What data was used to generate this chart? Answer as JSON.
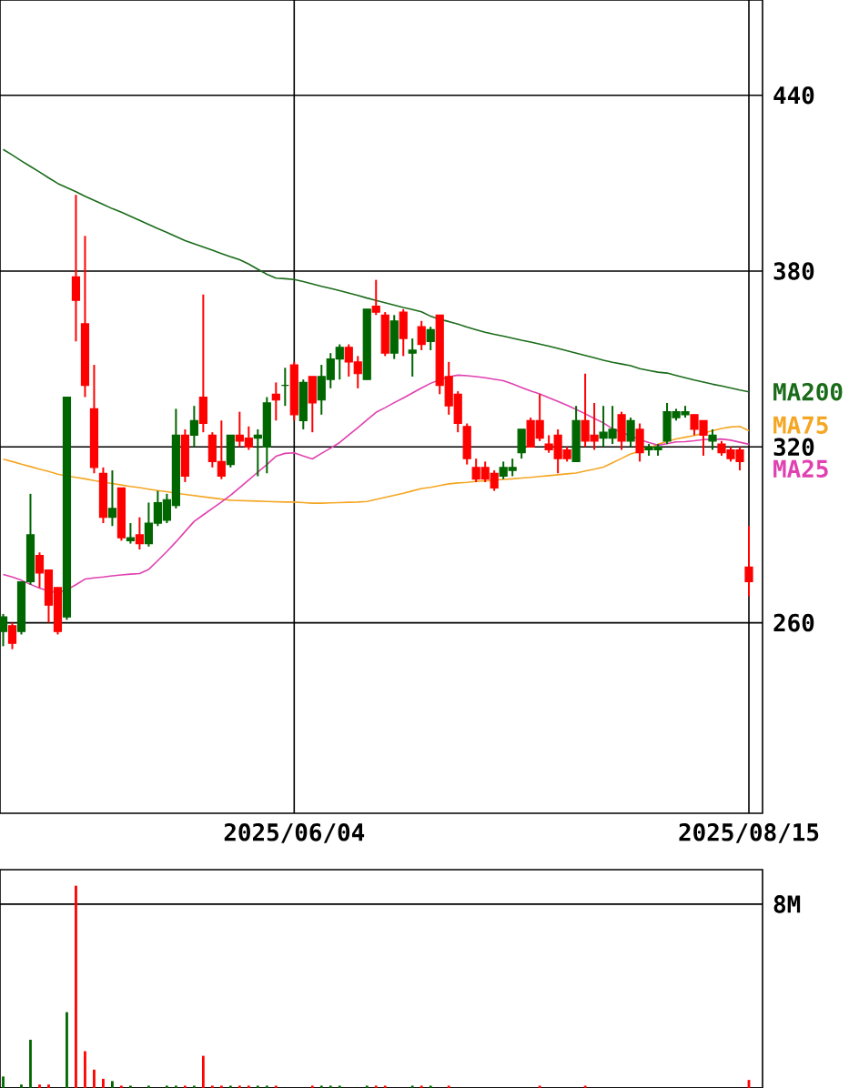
{
  "chart_data": [
    {
      "type": "candlestick",
      "categories": [
        null,
        null,
        null,
        null,
        null,
        null,
        null,
        null,
        null,
        null,
        null,
        null,
        null,
        null,
        null,
        null,
        null,
        null,
        null,
        null,
        null,
        null,
        null,
        null,
        null,
        null,
        null,
        null,
        null,
        null,
        null,
        null,
        "2025/06/04",
        null,
        null,
        null,
        null,
        null,
        null,
        null,
        null,
        null,
        null,
        null,
        null,
        null,
        null,
        null,
        null,
        null,
        null,
        null,
        null,
        null,
        null,
        null,
        null,
        null,
        null,
        null,
        null,
        null,
        null,
        null,
        null,
        null,
        null,
        null,
        null,
        null,
        null,
        null,
        null,
        null,
        null,
        null,
        null,
        null,
        null,
        null,
        null,
        null,
        "2025/08/15"
      ],
      "ohlc": [
        [
          257,
          263,
          252,
          262
        ],
        [
          259,
          260,
          251,
          253
        ],
        [
          257,
          274,
          256,
          274
        ],
        [
          274,
          304,
          273,
          290
        ],
        [
          283,
          284,
          272,
          277
        ],
        [
          278,
          278,
          260,
          266
        ],
        [
          272,
          272,
          256,
          257
        ],
        [
          262,
          337,
          261,
          337
        ],
        [
          378,
          406,
          356,
          370
        ],
        [
          362,
          392,
          337,
          341
        ],
        [
          333,
          348,
          311,
          313
        ],
        [
          311,
          313,
          294,
          296
        ],
        [
          296,
          312,
          293,
          299
        ],
        [
          306,
          306,
          288,
          289
        ],
        [
          288,
          294,
          287,
          289
        ],
        [
          290,
          296,
          285,
          287
        ],
        [
          287,
          301,
          286,
          294
        ],
        [
          294,
          305,
          293,
          301
        ],
        [
          295,
          304,
          294,
          302
        ],
        [
          300,
          333,
          299,
          324
        ],
        [
          324,
          326,
          308,
          310
        ],
        [
          324,
          334,
          320,
          329
        ],
        [
          337,
          372,
          325,
          328
        ],
        [
          324,
          325,
          313,
          315
        ],
        [
          315,
          329,
          309,
          310
        ],
        [
          314,
          324,
          313,
          324
        ],
        [
          324,
          332,
          320,
          322
        ],
        [
          323,
          327,
          319,
          320
        ],
        [
          323,
          326,
          310,
          324
        ],
        [
          320,
          337,
          311,
          335
        ],
        [
          338,
          342,
          329,
          336
        ],
        [
          341,
          347,
          334,
          341
        ],
        [
          348,
          349,
          329,
          331
        ],
        [
          329,
          343,
          326,
          342
        ],
        [
          344,
          344,
          325,
          335
        ],
        [
          336,
          348,
          331,
          344
        ],
        [
          343,
          352,
          340,
          350
        ],
        [
          350,
          355,
          343,
          354
        ],
        [
          354,
          355,
          344,
          349
        ],
        [
          349,
          351,
          340,
          345
        ],
        [
          343,
          367,
          343,
          367
        ],
        [
          368,
          377,
          365,
          366
        ],
        [
          365,
          366,
          351,
          352
        ],
        [
          352,
          365,
          350,
          363
        ],
        [
          366,
          367,
          351,
          357
        ],
        [
          352,
          357,
          344,
          353
        ],
        [
          361,
          363,
          353,
          355
        ],
        [
          356,
          361,
          353,
          360
        ],
        [
          365,
          365,
          338,
          341
        ],
        [
          344,
          349,
          331,
          334
        ],
        [
          338,
          339,
          325,
          328
        ],
        [
          327,
          328,
          314,
          316
        ],
        [
          313,
          316,
          308,
          309
        ],
        [
          313,
          315,
          308,
          309
        ],
        [
          311,
          312,
          305,
          306
        ],
        [
          310,
          315,
          309,
          313
        ],
        [
          312,
          316,
          310,
          313
        ],
        [
          318,
          326,
          316,
          326
        ],
        [
          329,
          330,
          320,
          320
        ],
        [
          329,
          338,
          322,
          323
        ],
        [
          321,
          324,
          318,
          319
        ],
        [
          324,
          326,
          311,
          316
        ],
        [
          319,
          320,
          315,
          316
        ],
        [
          315,
          334,
          315,
          329
        ],
        [
          329,
          345,
          320,
          322
        ],
        [
          324,
          335,
          319,
          322
        ],
        [
          323,
          334,
          320,
          325
        ],
        [
          323,
          334,
          321,
          326
        ],
        [
          331,
          332,
          319,
          322
        ],
        [
          322,
          330,
          320,
          329
        ],
        [
          326,
          328,
          315,
          318
        ],
        [
          319,
          321,
          317,
          320
        ],
        [
          319,
          321,
          317,
          320
        ],
        [
          322,
          335,
          321,
          332
        ],
        [
          330,
          333,
          329,
          332
        ],
        [
          331,
          334,
          330,
          332
        ],
        [
          331,
          331,
          324,
          326
        ],
        [
          329,
          329,
          317,
          324
        ],
        [
          322,
          326,
          319,
          324
        ],
        [
          321,
          322,
          317,
          318
        ],
        [
          319,
          320,
          315,
          316
        ],
        [
          319,
          320,
          312,
          315
        ],
        [
          279,
          293,
          269,
          274
        ]
      ],
      "colors": [
        "#006600",
        "#ff0000",
        "#006600",
        "#006600",
        "#ff0000",
        "#ff0000",
        "#ff0000",
        "#006600",
        "#ff0000",
        "#ff0000",
        "#ff0000",
        "#ff0000",
        "#006600",
        "#ff0000",
        "#006600",
        "#ff0000",
        "#006600",
        "#006600",
        "#006600",
        "#006600",
        "#ff0000",
        "#006600",
        "#ff0000",
        "#ff0000",
        "#ff0000",
        "#006600",
        "#ff0000",
        "#ff0000",
        "#006600",
        "#006600",
        "#ff0000",
        "#006600",
        "#ff0000",
        "#006600",
        "#ff0000",
        "#006600",
        "#006600",
        "#006600",
        "#ff0000",
        "#ff0000",
        "#006600",
        "#ff0000",
        "#ff0000",
        "#006600",
        "#ff0000",
        "#006600",
        "#ff0000",
        "#006600",
        "#ff0000",
        "#ff0000",
        "#ff0000",
        "#ff0000",
        "#ff0000",
        "#ff0000",
        "#ff0000",
        "#006600",
        "#006600",
        "#006600",
        "#ff0000",
        "#ff0000",
        "#ff0000",
        "#ff0000",
        "#ff0000",
        "#006600",
        "#ff0000",
        "#ff0000",
        "#006600",
        "#006600",
        "#ff0000",
        "#006600",
        "#ff0000",
        "#006600",
        "#006600",
        "#006600",
        "#006600",
        "#006600",
        "#ff0000",
        "#ff0000",
        "#006600",
        "#ff0000",
        "#ff0000",
        "#ff0000",
        "#ff0000"
      ],
      "series": [
        {
          "name": "MA200",
          "type": "line",
          "color": "#1a6b1a",
          "values": [
            421.5,
            419.6,
            417.6,
            415.7,
            413.8,
            411.8,
            409.9,
            408.5,
            407.1,
            405.5,
            404.1,
            402.7,
            401.3,
            400.1,
            398.7,
            397.3,
            395.9,
            394.5,
            393.2,
            391.8,
            390.4,
            389.3,
            388.2,
            387.1,
            386.0,
            384.9,
            383.9,
            382.4,
            380.6,
            378.9,
            377.6,
            377.4,
            377.1,
            376.4,
            375.6,
            374.8,
            374.1,
            373.3,
            372.5,
            371.7,
            370.8,
            370.0,
            369.2,
            368.4,
            367.6,
            366.9,
            366.1,
            364.6,
            363.5,
            362.8,
            361.9,
            360.9,
            360.0,
            359.1,
            358.4,
            357.8,
            357.1,
            356.4,
            355.8,
            355.1,
            354.4,
            353.6,
            352.8,
            352.0,
            351.2,
            350.4,
            349.6,
            348.9,
            348.3,
            347.7,
            346.7,
            346.1,
            345.5,
            345.2,
            344.4,
            343.6,
            342.8,
            342.1,
            341.4,
            340.8,
            340.1,
            339.4,
            338.8
          ]
        },
        {
          "name": "MA75",
          "type": "line",
          "color": "#f5a623",
          "values": [
            315.8,
            315.0,
            314.1,
            313.3,
            312.4,
            311.6,
            310.7,
            310.1,
            309.6,
            309.1,
            308.5,
            308.0,
            307.5,
            307.0,
            306.5,
            306.1,
            305.6,
            305.1,
            304.7,
            304.2,
            303.8,
            303.4,
            303.0,
            302.6,
            302.2,
            301.8,
            301.7,
            301.6,
            301.5,
            301.4,
            301.3,
            301.2,
            301.2,
            301.0,
            300.8,
            300.8,
            300.9,
            301.0,
            301.1,
            301.2,
            301.4,
            302.1,
            302.8,
            303.5,
            304.2,
            305.0,
            305.8,
            306.2,
            306.8,
            307.4,
            307.7,
            307.9,
            308.2,
            308.4,
            308.7,
            308.9,
            309.1,
            309.4,
            309.6,
            309.9,
            310.2,
            310.5,
            310.8,
            311.1,
            311.8,
            312.4,
            313.1,
            314.6,
            316.1,
            317.6,
            318.5,
            319.6,
            320.9,
            321.9,
            322.7,
            323.3,
            323.9,
            324.7,
            325.5,
            326.3,
            326.8,
            327.0,
            325.5
          ]
        },
        {
          "name": "MA25",
          "type": "line",
          "color": "#e040b0",
          "values": [
            276.5,
            275.6,
            274.5,
            273.1,
            271.8,
            270.8,
            270.3,
            271.3,
            273.0,
            274.9,
            275.3,
            275.6,
            276.0,
            276.3,
            276.6,
            276.8,
            278.2,
            281.2,
            284.3,
            287.6,
            291.1,
            294.6,
            296.8,
            299.0,
            301.2,
            303.5,
            306.1,
            308.7,
            311.4,
            314.0,
            316.8,
            317.8,
            318.0,
            316.9,
            315.9,
            317.8,
            319.6,
            321.5,
            324.1,
            326.6,
            329.2,
            331.8,
            333.4,
            335.1,
            336.7,
            338.4,
            340.1,
            341.7,
            342.9,
            343.9,
            344.5,
            344.3,
            344.0,
            343.6,
            343.1,
            342.6,
            341.5,
            340.3,
            339.1,
            338.1,
            336.8,
            335.5,
            334.2,
            332.8,
            331.3,
            329.7,
            328.2,
            326.2,
            324.9,
            323.8,
            322.5,
            321.5,
            320.6,
            321.1,
            321.7,
            321.8,
            322.1,
            322.5,
            322.6,
            322.7,
            322.3,
            321.6,
            320.9
          ]
        }
      ],
      "ylim": [
        195,
        472.5
      ],
      "yticks": [
        260,
        320,
        380,
        440
      ],
      "grid": true
    },
    {
      "type": "bar",
      "categories": [
        null,
        null,
        null,
        null,
        null,
        null,
        null,
        null,
        null,
        null,
        null,
        null,
        null,
        null,
        null,
        null,
        null,
        null,
        null,
        null,
        null,
        null,
        null,
        null,
        null,
        null,
        null,
        null,
        null,
        null,
        null,
        null,
        null,
        null,
        null,
        null,
        null,
        null,
        null,
        null,
        null,
        null,
        null,
        null,
        null,
        null,
        null,
        null,
        null,
        null,
        null,
        null,
        null,
        null,
        null,
        null,
        null,
        null,
        null,
        null,
        null,
        null,
        null,
        null,
        null,
        null,
        null,
        null,
        null,
        null,
        null,
        null,
        null,
        null,
        null,
        null,
        null,
        null,
        null,
        null,
        null,
        null,
        null
      ],
      "values": [
        0.5,
        0,
        0.15,
        2.1,
        0.15,
        0.15,
        0,
        3.3,
        8.8,
        1.6,
        0.8,
        0.4,
        0.3,
        0.1,
        0.1,
        0,
        0.1,
        0,
        0.1,
        0.1,
        0.1,
        0.1,
        1.4,
        0.1,
        0.1,
        0.1,
        0.1,
        0.1,
        0.1,
        0.1,
        0.1,
        0,
        0,
        0,
        0.1,
        0.1,
        0.1,
        0.1,
        0,
        0,
        0.1,
        0.1,
        0.1,
        0,
        0,
        0.1,
        0.1,
        0.1,
        0,
        0.1,
        0,
        0,
        0,
        0,
        0,
        0,
        0,
        0,
        0,
        0.1,
        0,
        0,
        0,
        0,
        0.1,
        0,
        0,
        0,
        0,
        0,
        0,
        0,
        0,
        0,
        0,
        0,
        0,
        0,
        0,
        0,
        0,
        0,
        0.35
      ],
      "colors": [
        "#006600",
        "#ff0000",
        "#006600",
        "#006600",
        "#ff0000",
        "#ff0000",
        "#ff0000",
        "#006600",
        "#ff0000",
        "#ff0000",
        "#ff0000",
        "#ff0000",
        "#006600",
        "#ff0000",
        "#006600",
        "#ff0000",
        "#006600",
        "#006600",
        "#006600",
        "#006600",
        "#ff0000",
        "#006600",
        "#ff0000",
        "#ff0000",
        "#ff0000",
        "#006600",
        "#ff0000",
        "#ff0000",
        "#006600",
        "#006600",
        "#ff0000",
        "#006600",
        "#ff0000",
        "#006600",
        "#ff0000",
        "#006600",
        "#006600",
        "#006600",
        "#ff0000",
        "#ff0000",
        "#006600",
        "#ff0000",
        "#ff0000",
        "#006600",
        "#ff0000",
        "#006600",
        "#ff0000",
        "#006600",
        "#ff0000",
        "#ff0000",
        "#ff0000",
        "#ff0000",
        "#ff0000",
        "#ff0000",
        "#ff0000",
        "#006600",
        "#006600",
        "#006600",
        "#ff0000",
        "#ff0000",
        "#ff0000",
        "#ff0000",
        "#ff0000",
        "#006600",
        "#ff0000",
        "#ff0000",
        "#006600",
        "#006600",
        "#ff0000",
        "#006600",
        "#ff0000",
        "#006600",
        "#006600",
        "#006600",
        "#006600",
        "#006600",
        "#ff0000",
        "#ff0000",
        "#006600",
        "#ff0000",
        "#ff0000",
        "#ff0000",
        "#ff0000"
      ],
      "ylim": [
        0,
        9.5
      ],
      "yticks": [
        {
          "value": 0,
          "label": null
        },
        {
          "value": 8,
          "label": "8M"
        }
      ],
      "grid": "y",
      "tick_labels": "y"
    }
  ]
}
